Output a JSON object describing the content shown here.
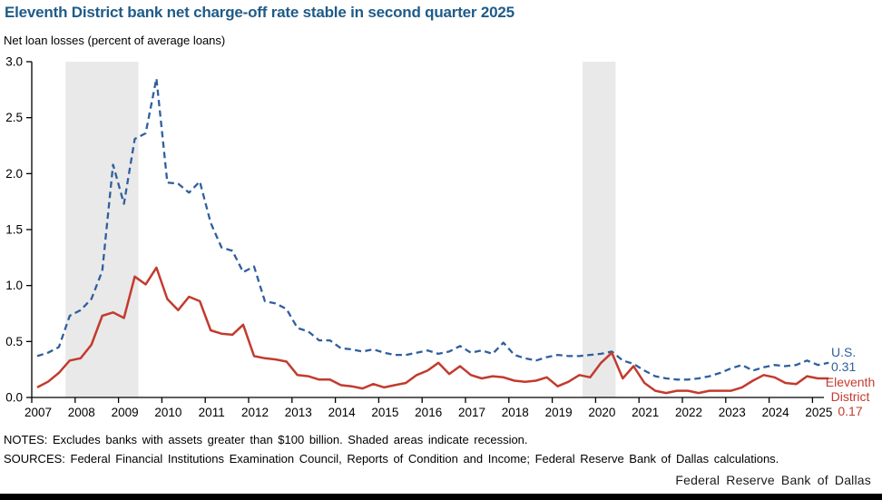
{
  "header": {
    "title": "Eleventh District bank net charge-off rate stable in second quarter 2025",
    "subtitle": "Net loan losses (percent of average loans)"
  },
  "chart_data": {
    "type": "line",
    "title": "Eleventh District bank net charge-off rate stable in second quarter 2025",
    "ylabel": "Net loan losses (percent of average loans)",
    "ylim": [
      0,
      3
    ],
    "y_tick_values": [
      0,
      0.5,
      1,
      1.5,
      2,
      2.5,
      3
    ],
    "y_tick_labels": [
      "0.0",
      "0.5",
      "1.0",
      "1.5",
      "2.0",
      "2.5",
      "3.0"
    ],
    "x_tick_labels": [
      "2007",
      "2008",
      "2009",
      "2010",
      "2011",
      "2012",
      "2013",
      "2014",
      "2015",
      "2016",
      "2017",
      "2018",
      "2019",
      "2020",
      "2021",
      "2022",
      "2023",
      "2024",
      "2025"
    ],
    "x_start": "2007 Q1",
    "x_end": "2025 Q2",
    "frequency": "quarterly",
    "grid": false,
    "recession_bands_years": [
      [
        2007.78,
        2009.46
      ],
      [
        2019.7,
        2020.46
      ]
    ],
    "series": [
      {
        "name": "U.S.",
        "style": "dashed",
        "color": "#2f5f9e",
        "end_label_line1": "U.S.",
        "end_label_line2": "0.31",
        "values": [
          0.37,
          0.4,
          0.45,
          0.73,
          0.78,
          0.88,
          1.13,
          2.08,
          1.73,
          2.31,
          2.36,
          2.85,
          1.92,
          1.91,
          1.83,
          1.93,
          1.56,
          1.34,
          1.31,
          1.12,
          1.17,
          0.86,
          0.84,
          0.79,
          0.62,
          0.59,
          0.51,
          0.51,
          0.44,
          0.43,
          0.41,
          0.43,
          0.4,
          0.38,
          0.38,
          0.4,
          0.42,
          0.39,
          0.41,
          0.46,
          0.4,
          0.42,
          0.39,
          0.49,
          0.38,
          0.35,
          0.33,
          0.36,
          0.38,
          0.37,
          0.37,
          0.38,
          0.39,
          0.41,
          0.33,
          0.3,
          0.24,
          0.19,
          0.17,
          0.16,
          0.16,
          0.17,
          0.19,
          0.22,
          0.26,
          0.29,
          0.24,
          0.27,
          0.29,
          0.28,
          0.29,
          0.33,
          0.29,
          0.31
        ]
      },
      {
        "name": "Eleventh District",
        "style": "solid",
        "color": "#c23b2e",
        "end_label_line1": "Eleventh",
        "end_label_line2": "District",
        "end_label_line3": "0.17",
        "values": [
          0.09,
          0.14,
          0.22,
          0.33,
          0.35,
          0.47,
          0.73,
          0.76,
          0.71,
          1.08,
          1.01,
          1.16,
          0.88,
          0.78,
          0.9,
          0.86,
          0.6,
          0.57,
          0.56,
          0.65,
          0.37,
          0.35,
          0.34,
          0.32,
          0.2,
          0.19,
          0.16,
          0.16,
          0.11,
          0.1,
          0.08,
          0.12,
          0.09,
          0.11,
          0.13,
          0.2,
          0.24,
          0.31,
          0.21,
          0.28,
          0.2,
          0.17,
          0.19,
          0.18,
          0.15,
          0.14,
          0.15,
          0.18,
          0.1,
          0.14,
          0.2,
          0.18,
          0.31,
          0.4,
          0.17,
          0.28,
          0.13,
          0.06,
          0.04,
          0.06,
          0.06,
          0.04,
          0.06,
          0.06,
          0.06,
          0.09,
          0.15,
          0.2,
          0.18,
          0.13,
          0.12,
          0.19,
          0.17,
          0.17
        ]
      }
    ],
    "latest_values": {
      "us": "0.31",
      "eleventh_district": "0.17"
    },
    "band_color": "#e9e9e9"
  },
  "notes": {
    "notes_line": "NOTES: Excludes banks with assets greater than $100 billion. Shaded areas indicate recession.",
    "sources_line": "SOURCES: Federal Financial Institutions Examination Council, Reports of Condition and Income; Federal Reserve Bank of Dallas calculations."
  },
  "footer": {
    "org": "Federal Reserve Bank of Dallas"
  }
}
